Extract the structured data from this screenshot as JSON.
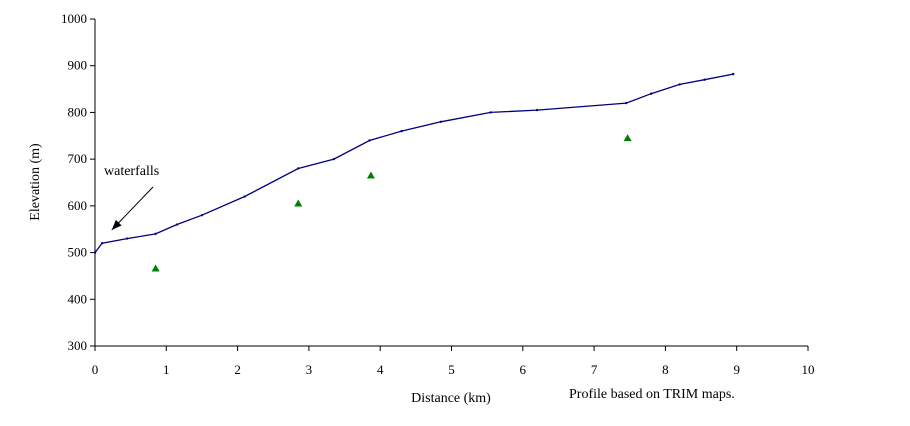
{
  "chart_data": {
    "type": "line",
    "xlabel": "Distance (km)",
    "ylabel": "Elevation (m)",
    "xlim": [
      0,
      10
    ],
    "ylim": [
      300,
      1000
    ],
    "x_ticks": [
      0,
      1,
      2,
      3,
      4,
      5,
      6,
      7,
      8,
      9,
      10
    ],
    "y_ticks": [
      300,
      400,
      500,
      600,
      700,
      800,
      900,
      1000
    ],
    "grid": false,
    "legend": "none",
    "series": [
      {
        "kind": "line",
        "color": "#000080",
        "x": [
          0,
          0.1,
          0.45,
          0.85,
          1.15,
          1.5,
          2.1,
          2.85,
          3.35,
          3.85,
          4.3,
          4.85,
          5.55,
          6.2,
          7.45,
          7.8,
          8.2,
          8.55,
          8.95
        ],
        "y": [
          500,
          520,
          530,
          540,
          560,
          580,
          620,
          680,
          700,
          740,
          760,
          780,
          800,
          805,
          820,
          840,
          860,
          870,
          882
        ]
      },
      {
        "kind": "scatter",
        "marker": "triangle",
        "color": "#008000",
        "x": [
          0.85,
          2.85,
          3.87,
          7.47
        ],
        "y": [
          466,
          605,
          665,
          745
        ]
      }
    ],
    "annotations": [
      {
        "text": "waterfalls",
        "arrow_to": [
          0.25,
          540
        ]
      },
      {
        "text": "Profile based on  TRIM maps."
      }
    ]
  }
}
